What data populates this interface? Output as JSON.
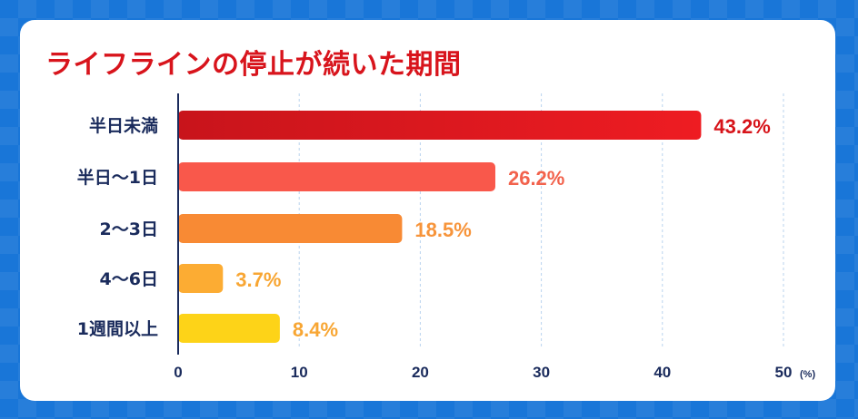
{
  "chart_data": {
    "type": "bar",
    "orientation": "horizontal",
    "title": "ライフラインの停止が続いた期間",
    "categories": [
      "半日未満",
      "半日〜1日",
      "2〜3日",
      "4〜6日",
      "1週間以上"
    ],
    "values": [
      43.2,
      26.2,
      18.5,
      3.7,
      8.4
    ],
    "value_labels": [
      "43.2%",
      "26.2%",
      "18.5%",
      "3.7%",
      "8.4%"
    ],
    "bar_colors": [
      "#d7141a",
      "#f9584b",
      "#f88a34",
      "#fcac33",
      "#fdd318"
    ],
    "label_colors": [
      "#d7141a",
      "#f2624c",
      "#f7943a",
      "#f8a633",
      "#f8a633"
    ],
    "xlim": [
      0,
      50
    ],
    "xticks": [
      "0",
      "10",
      "20",
      "30",
      "40",
      "50"
    ],
    "unit": "(%)",
    "grid": true
  }
}
